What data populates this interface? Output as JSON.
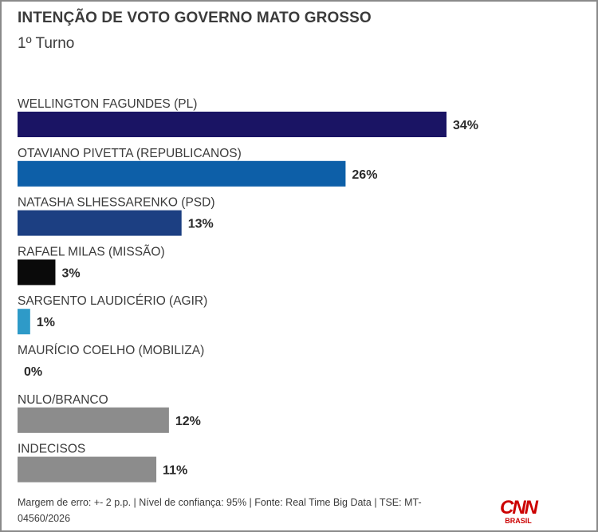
{
  "header": {
    "title": "INTENÇÃO DE VOTO GOVERNO MATO GROSSO",
    "subtitle": "1º Turno"
  },
  "chart_data": {
    "type": "bar",
    "orientation": "horizontal",
    "title": "INTENÇÃO DE VOTO GOVERNO MATO GROSSO",
    "subtitle": "1º Turno",
    "categories": [
      "WELLINGTON FAGUNDES (PL)",
      "OTAVIANO PIVETTA (REPUBLICANOS)",
      "NATASHA SLHESSARENKO (PSD)",
      "RAFAEL MILAS (MISSÃO)",
      "SARGENTO LAUDICÉRIO (AGIR)",
      "MAURÍCIO COELHO (MOBILIZA)",
      "NULO/BRANCO",
      "INDECISOS"
    ],
    "values": [
      34,
      26,
      13,
      3,
      1,
      0,
      12,
      11
    ],
    "value_labels": [
      "34%",
      "26%",
      "13%",
      "3%",
      "1%",
      "0%",
      "12%",
      "11%"
    ],
    "colors": [
      "#1a1464",
      "#0d5fa8",
      "#1c3f82",
      "#0a0a0a",
      "#2e9ac8",
      "#cccccc",
      "#8c8c8c",
      "#8c8c8c"
    ],
    "unit": "%",
    "xlim": [
      0,
      34
    ],
    "grid": false,
    "legend": "none"
  },
  "footer": {
    "note": "Margem de erro: +- 2 p.p. | Nível de confiança: 95% | Fonte: Real Time Big Data | TSE: MT-04560/2026"
  },
  "logo": {
    "brand": "CNN",
    "sub": "BRASIL",
    "color": "#cc0000"
  }
}
